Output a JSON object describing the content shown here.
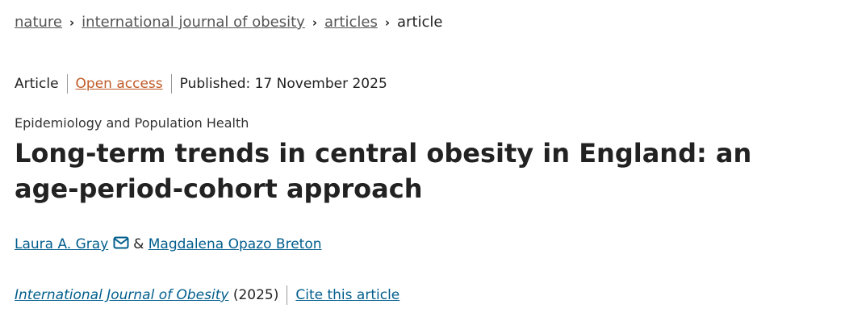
{
  "breadcrumb": [
    "nature",
    "international journal of obesity",
    "articles",
    "article"
  ],
  "meta": {
    "type": "Article",
    "access": "Open access",
    "published": "Published: 17 November 2025"
  },
  "subject": "Epidemiology and Population Health",
  "title": "Long-term trends in central obesity in England: an age-period-cohort approach",
  "authors": {
    "first": "Laura A. Gray",
    "separator": "&",
    "second": "Magdalena Opazo Breton"
  },
  "citation": {
    "journal": "International Journal of Obesity",
    "year": "(2025)",
    "cite": "Cite this article"
  }
}
